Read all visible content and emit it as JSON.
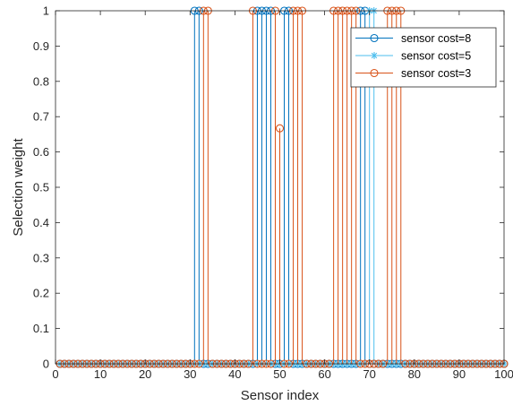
{
  "chart_data": {
    "type": "stem",
    "xlabel": "Sensor index",
    "ylabel": "Selection weight",
    "xlim": [
      0,
      100
    ],
    "ylim": [
      0,
      1
    ],
    "xticks": [
      0,
      10,
      20,
      30,
      40,
      50,
      60,
      70,
      80,
      90,
      100
    ],
    "yticks": [
      0,
      0.1,
      0.2,
      0.3,
      0.4,
      0.5,
      0.6,
      0.7,
      0.8,
      0.9,
      1
    ],
    "grid": false,
    "box": true,
    "legend_position": "top-right",
    "series": [
      {
        "name": "sensor cost=8",
        "color": "#0072BD",
        "marker": "circle",
        "ones": [
          31,
          32,
          45,
          46,
          47,
          48,
          51,
          52,
          68,
          69
        ],
        "partial": []
      },
      {
        "name": "sensor cost=5",
        "color": "#4DBEEE",
        "marker": "asterisk",
        "ones": [
          70,
          71
        ],
        "partial": []
      },
      {
        "name": "sensor cost=3",
        "color": "#D95319",
        "marker": "circle",
        "ones": [
          33,
          34,
          44,
          49,
          53,
          54,
          55,
          62,
          63,
          64,
          65,
          66,
          67,
          74,
          75,
          76,
          77
        ],
        "partial": [
          {
            "x": 50,
            "y": 0.667
          }
        ]
      }
    ]
  }
}
